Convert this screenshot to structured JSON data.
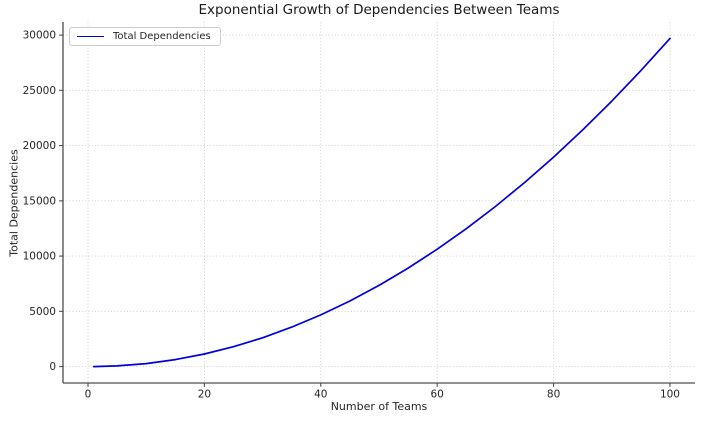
{
  "chart_data": {
    "type": "line",
    "title": "Exponential Growth of Dependencies Between Teams",
    "xlabel": "Number of Teams",
    "ylabel": "Total Dependencies",
    "grid": true,
    "grid_style": "dotted",
    "legend_position": "upper left",
    "xlim": [
      -4.3,
      104.3
    ],
    "ylim": [
      -1485,
      31185
    ],
    "xticks": [
      0,
      20,
      40,
      60,
      80,
      100
    ],
    "yticks": [
      0,
      5000,
      10000,
      15000,
      20000,
      25000,
      30000
    ],
    "series": [
      {
        "name": "Total Dependencies",
        "x": [
          1,
          5,
          10,
          15,
          20,
          25,
          30,
          35,
          40,
          45,
          50,
          55,
          60,
          65,
          70,
          75,
          80,
          85,
          90,
          95,
          100
        ],
        "y": [
          0,
          60,
          270,
          630,
          1140,
          1800,
          2610,
          3570,
          4680,
          5940,
          7350,
          8910,
          10620,
          12480,
          14490,
          16650,
          18960,
          21420,
          24030,
          26790,
          29700
        ]
      }
    ]
  },
  "colors": {
    "line": "#0000dd",
    "grid": "#c9c9c9",
    "spine": "#4d4d4d",
    "tick_text": "#262626",
    "title_text": "#1a1a1a",
    "background": "#ffffff",
    "legend_border": "#cccccc"
  }
}
